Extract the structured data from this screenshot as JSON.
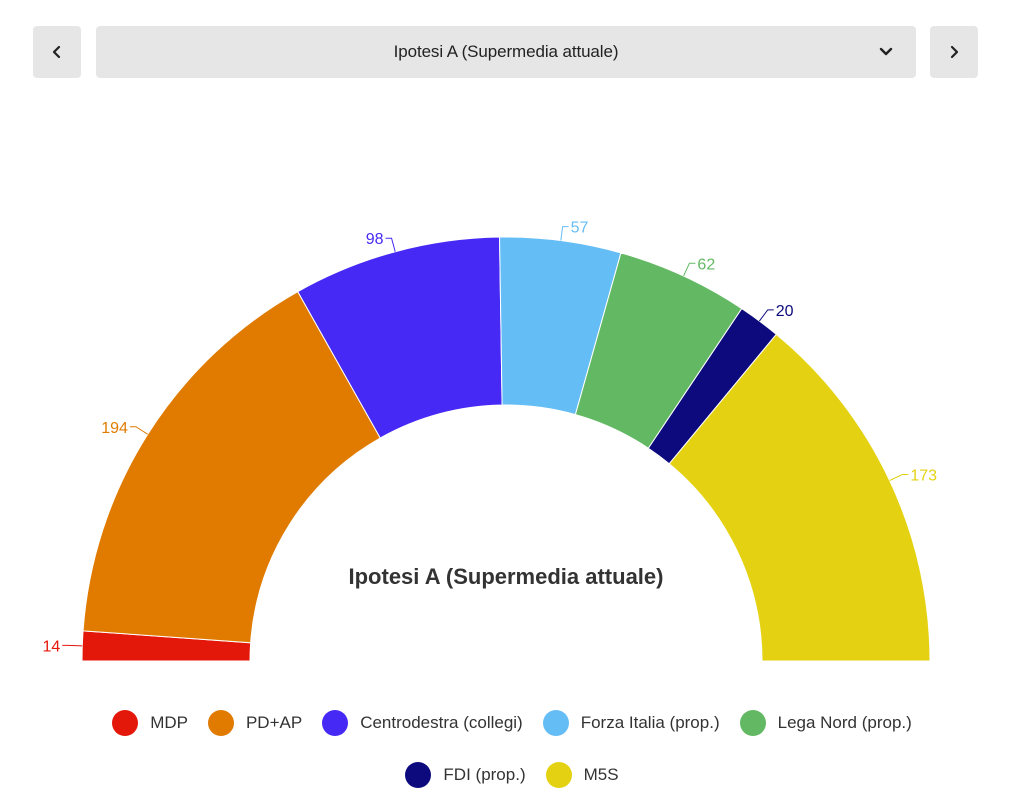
{
  "selector": {
    "selected": "Ipotesi A (Supermedia attuale)"
  },
  "chart_data": {
    "type": "pie",
    "variant": "semicircle-parliament",
    "title": "Ipotesi A (Supermedia attuale)",
    "categories": [
      "MDP",
      "PD+AP",
      "Centrodestra (collegi)",
      "Forza Italia (prop.)",
      "Lega Nord (prop.)",
      "FDI (prop.)",
      "M5S"
    ],
    "values": [
      14,
      194,
      98,
      57,
      62,
      20,
      173
    ],
    "colors": [
      "#e3170a",
      "#e07b00",
      "#4629f5",
      "#65bdf5",
      "#63b963",
      "#0c0a7c",
      "#e4d212"
    ],
    "data_labels": [
      "14",
      "194",
      "98",
      "57",
      "62",
      "20",
      "173"
    ],
    "legend_position": "bottom"
  }
}
